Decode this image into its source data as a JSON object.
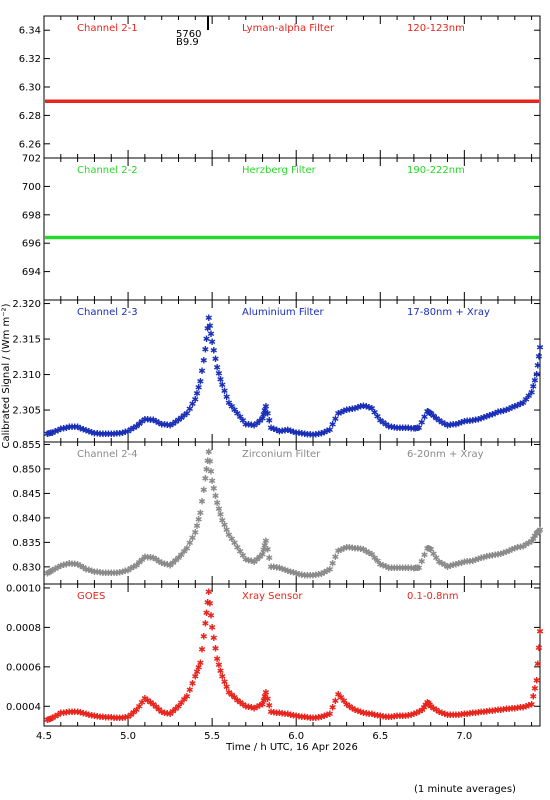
{
  "chart_data": {
    "type": "scatter",
    "x_title": "Time / h UTC, 16 Apr 2026",
    "y_title": "Calibrated Signal / (Wm m⁻²)",
    "footnote": "(1 minute averages)",
    "xlim": [
      4.5,
      7.45
    ],
    "x_ticks": [
      "4.5",
      "5.0",
      "5.5",
      "6.0",
      "6.5",
      "7.0"
    ],
    "marker_labels": [
      "5760",
      "B9.9"
    ],
    "panels": [
      {
        "channel": "Channel 2-1",
        "filter": "Lyman-alpha Filter",
        "band": "120-123nm",
        "color": "#e8251d",
        "ylim": [
          6.25,
          6.35
        ],
        "y_ticks": [
          "6.26",
          "6.28",
          "6.30",
          "6.32",
          "6.34"
        ],
        "points": [
          [
            4.5,
            6.29
          ],
          [
            7.45,
            6.29
          ]
        ]
      },
      {
        "channel": "Channel 2-2",
        "filter": "Herzberg Filter",
        "band": "190-222nm",
        "color": "#28d82a",
        "ylim": [
          692,
          702
        ],
        "y_ticks": [
          "694",
          "696",
          "698",
          "700",
          "702"
        ],
        "points": [
          [
            4.5,
            696.4
          ],
          [
            7.45,
            696.4
          ]
        ]
      },
      {
        "channel": "Channel 2-3",
        "filter": "Aluminium Filter",
        "band": "17-80nm + Xray",
        "color": "#1a2fb8",
        "ylim": [
          2.3005,
          2.3205
        ],
        "y_ticks": [
          "2.305",
          "2.310",
          "2.315",
          "2.320"
        ],
        "points": [
          [
            4.52,
            2.3016
          ],
          [
            4.55,
            2.3018
          ],
          [
            4.6,
            2.3023
          ],
          [
            4.65,
            2.3026
          ],
          [
            4.7,
            2.3026
          ],
          [
            4.75,
            2.3021
          ],
          [
            4.8,
            2.3017
          ],
          [
            4.85,
            2.3016
          ],
          [
            4.9,
            2.3016
          ],
          [
            4.95,
            2.3017
          ],
          [
            5.0,
            2.302
          ],
          [
            5.05,
            2.3027
          ],
          [
            5.1,
            2.3037
          ],
          [
            5.15,
            2.3036
          ],
          [
            5.2,
            2.303
          ],
          [
            5.25,
            2.3028
          ],
          [
            5.3,
            2.3036
          ],
          [
            5.35,
            2.3045
          ],
          [
            5.4,
            2.3065
          ],
          [
            5.43,
            2.309
          ],
          [
            5.46,
            2.3135
          ],
          [
            5.48,
            2.318
          ],
          [
            5.5,
            2.3146
          ],
          [
            5.53,
            2.311
          ],
          [
            5.56,
            2.3085
          ],
          [
            5.6,
            2.306
          ],
          [
            5.65,
            2.3045
          ],
          [
            5.7,
            2.303
          ],
          [
            5.75,
            2.3028
          ],
          [
            5.8,
            2.3038
          ],
          [
            5.82,
            2.3055
          ],
          [
            5.85,
            2.3025
          ],
          [
            5.9,
            2.302
          ],
          [
            5.95,
            2.3022
          ],
          [
            6.0,
            2.3018
          ],
          [
            6.05,
            2.3016
          ],
          [
            6.1,
            2.3015
          ],
          [
            6.15,
            2.3017
          ],
          [
            6.2,
            2.3022
          ],
          [
            6.25,
            2.3045
          ],
          [
            6.3,
            2.305
          ],
          [
            6.35,
            2.3052
          ],
          [
            6.4,
            2.3056
          ],
          [
            6.45,
            2.3052
          ],
          [
            6.5,
            2.3035
          ],
          [
            6.55,
            2.3027
          ],
          [
            6.6,
            2.3025
          ],
          [
            6.65,
            2.3025
          ],
          [
            6.7,
            2.3024
          ],
          [
            6.73,
            2.3025
          ],
          [
            6.78,
            2.3048
          ],
          [
            6.8,
            2.3045
          ],
          [
            6.85,
            2.3035
          ],
          [
            6.9,
            2.3028
          ],
          [
            6.95,
            2.303
          ],
          [
            7.0,
            2.3034
          ],
          [
            7.05,
            2.3035
          ],
          [
            7.1,
            2.3038
          ],
          [
            7.15,
            2.3042
          ],
          [
            7.2,
            2.3047
          ],
          [
            7.25,
            2.305
          ],
          [
            7.3,
            2.3055
          ],
          [
            7.35,
            2.306
          ],
          [
            7.4,
            2.3075
          ],
          [
            7.43,
            2.31
          ],
          [
            7.45,
            2.3138
          ]
        ]
      },
      {
        "channel": "Channel 2-4",
        "filter": "Zirconium Filter",
        "band": "6-20nm + Xray",
        "color": "#8a8a8a",
        "ylim": [
          0.8265,
          0.8555
        ],
        "y_ticks": [
          "0.830",
          "0.835",
          "0.840",
          "0.845",
          "0.850",
          "0.855"
        ],
        "points": [
          [
            4.52,
            0.8286
          ],
          [
            4.55,
            0.8293
          ],
          [
            4.6,
            0.8302
          ],
          [
            4.65,
            0.8307
          ],
          [
            4.7,
            0.8305
          ],
          [
            4.75,
            0.8295
          ],
          [
            4.8,
            0.829
          ],
          [
            4.85,
            0.8287
          ],
          [
            4.9,
            0.8287
          ],
          [
            4.95,
            0.8288
          ],
          [
            5.0,
            0.8293
          ],
          [
            5.05,
            0.8303
          ],
          [
            5.1,
            0.832
          ],
          [
            5.15,
            0.8318
          ],
          [
            5.2,
            0.8308
          ],
          [
            5.25,
            0.8303
          ],
          [
            5.3,
            0.8318
          ],
          [
            5.35,
            0.8338
          ],
          [
            5.4,
            0.837
          ],
          [
            5.43,
            0.841
          ],
          [
            5.46,
            0.848
          ],
          [
            5.48,
            0.8535
          ],
          [
            5.5,
            0.8475
          ],
          [
            5.53,
            0.843
          ],
          [
            5.56,
            0.8395
          ],
          [
            5.6,
            0.8365
          ],
          [
            5.65,
            0.834
          ],
          [
            5.7,
            0.8315
          ],
          [
            5.75,
            0.831
          ],
          [
            5.8,
            0.8325
          ],
          [
            5.82,
            0.8353
          ],
          [
            5.85,
            0.83
          ],
          [
            5.9,
            0.8298
          ],
          [
            5.95,
            0.8292
          ],
          [
            6.0,
            0.8286
          ],
          [
            6.05,
            0.8282
          ],
          [
            6.1,
            0.8282
          ],
          [
            6.15,
            0.8285
          ],
          [
            6.2,
            0.8295
          ],
          [
            6.25,
            0.8332
          ],
          [
            6.3,
            0.834
          ],
          [
            6.35,
            0.8338
          ],
          [
            6.4,
            0.8335
          ],
          [
            6.45,
            0.8325
          ],
          [
            6.5,
            0.8305
          ],
          [
            6.55,
            0.8298
          ],
          [
            6.6,
            0.8298
          ],
          [
            6.65,
            0.8298
          ],
          [
            6.7,
            0.8297
          ],
          [
            6.73,
            0.8298
          ],
          [
            6.78,
            0.8338
          ],
          [
            6.8,
            0.8335
          ],
          [
            6.85,
            0.831
          ],
          [
            6.9,
            0.83
          ],
          [
            6.95,
            0.8305
          ],
          [
            7.0,
            0.831
          ],
          [
            7.05,
            0.8312
          ],
          [
            7.1,
            0.8318
          ],
          [
            7.15,
            0.8322
          ],
          [
            7.2,
            0.8325
          ],
          [
            7.25,
            0.833
          ],
          [
            7.3,
            0.8338
          ],
          [
            7.35,
            0.8342
          ],
          [
            7.4,
            0.8352
          ],
          [
            7.43,
            0.8368
          ],
          [
            7.45,
            0.8375
          ]
        ]
      },
      {
        "channel": "GOES",
        "filter": "Xray Sensor",
        "band": "0.1-0.8nm",
        "color": "#e8251d",
        "ylim": [
          0.0003,
          0.00102
        ],
        "y_ticks": [
          "0.0004",
          "0.0006",
          "0.0008",
          "0.0010"
        ],
        "points": [
          [
            4.52,
            0.00033
          ],
          [
            4.55,
            0.00034
          ],
          [
            4.6,
            0.000365
          ],
          [
            4.65,
            0.00037
          ],
          [
            4.7,
            0.000372
          ],
          [
            4.75,
            0.00036
          ],
          [
            4.8,
            0.00035
          ],
          [
            4.85,
            0.000345
          ],
          [
            4.9,
            0.000342
          ],
          [
            4.95,
            0.00034
          ],
          [
            5.0,
            0.000345
          ],
          [
            5.05,
            0.00038
          ],
          [
            5.1,
            0.00044
          ],
          [
            5.15,
            0.00041
          ],
          [
            5.2,
            0.00037
          ],
          [
            5.25,
            0.00036
          ],
          [
            5.3,
            0.0004
          ],
          [
            5.35,
            0.00045
          ],
          [
            5.4,
            0.00055
          ],
          [
            5.43,
            0.00062
          ],
          [
            5.46,
            0.00082
          ],
          [
            5.48,
            0.00098
          ],
          [
            5.5,
            0.0008
          ],
          [
            5.53,
            0.00064
          ],
          [
            5.56,
            0.00055
          ],
          [
            5.6,
            0.00047
          ],
          [
            5.65,
            0.00043
          ],
          [
            5.7,
            0.0004
          ],
          [
            5.75,
            0.00039
          ],
          [
            5.8,
            0.00041
          ],
          [
            5.82,
            0.00047
          ],
          [
            5.85,
            0.00037
          ],
          [
            5.9,
            0.000365
          ],
          [
            5.95,
            0.00036
          ],
          [
            6.0,
            0.00035
          ],
          [
            6.05,
            0.000345
          ],
          [
            6.1,
            0.00034
          ],
          [
            6.15,
            0.000345
          ],
          [
            6.2,
            0.00036
          ],
          [
            6.25,
            0.00046
          ],
          [
            6.3,
            0.00041
          ],
          [
            6.35,
            0.00038
          ],
          [
            6.4,
            0.000365
          ],
          [
            6.45,
            0.00036
          ],
          [
            6.5,
            0.00035
          ],
          [
            6.55,
            0.000345
          ],
          [
            6.6,
            0.00035
          ],
          [
            6.65,
            0.00035
          ],
          [
            6.7,
            0.00036
          ],
          [
            6.75,
            0.00038
          ],
          [
            6.78,
            0.00042
          ],
          [
            6.8,
            0.0004
          ],
          [
            6.85,
            0.00037
          ],
          [
            6.9,
            0.000355
          ],
          [
            6.95,
            0.000355
          ],
          [
            7.0,
            0.00036
          ],
          [
            7.05,
            0.000365
          ],
          [
            7.1,
            0.00037
          ],
          [
            7.15,
            0.000375
          ],
          [
            7.2,
            0.00038
          ],
          [
            7.25,
            0.000385
          ],
          [
            7.3,
            0.00039
          ],
          [
            7.35,
            0.000395
          ],
          [
            7.4,
            0.00041
          ],
          [
            7.43,
            0.00053
          ],
          [
            7.45,
            0.00078
          ]
        ]
      }
    ]
  }
}
